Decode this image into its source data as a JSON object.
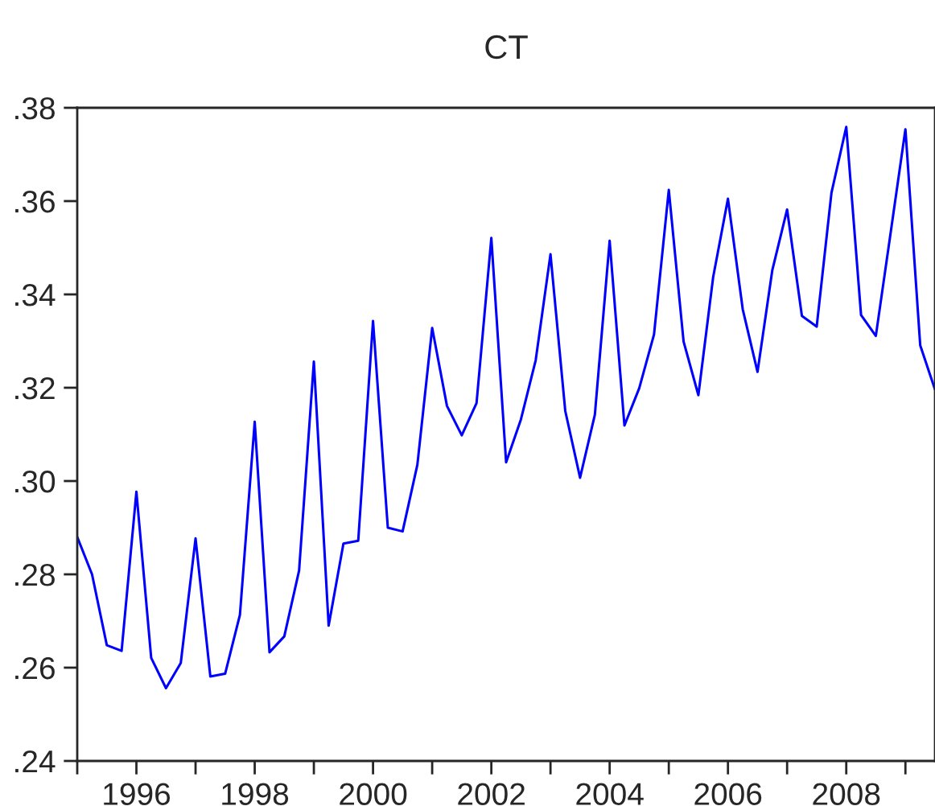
{
  "chart_data": {
    "type": "line",
    "title": "CT",
    "x": [
      1995.0,
      1995.25,
      1995.5,
      1995.75,
      1996.0,
      1996.25,
      1996.5,
      1996.75,
      1997.0,
      1997.25,
      1997.5,
      1997.75,
      1998.0,
      1998.25,
      1998.5,
      1998.75,
      1999.0,
      1999.25,
      1999.5,
      1999.75,
      2000.0,
      2000.25,
      2000.5,
      2000.75,
      2001.0,
      2001.25,
      2001.5,
      2001.75,
      2002.0,
      2002.25,
      2002.5,
      2002.75,
      2003.0,
      2003.25,
      2003.5,
      2003.75,
      2004.0,
      2004.25,
      2004.5,
      2004.75,
      2005.0,
      2005.25,
      2005.5,
      2005.75,
      2006.0,
      2006.25,
      2006.5,
      2006.75,
      2007.0,
      2007.25,
      2007.5,
      2007.75,
      2008.0,
      2008.25,
      2008.5,
      2008.75,
      2009.0,
      2009.25,
      2009.5
    ],
    "series": [
      {
        "color": "#0000ff",
        "values": [
          0.288,
          0.28,
          0.2648,
          0.2636,
          0.2977,
          0.2621,
          0.2556,
          0.261,
          0.2877,
          0.2581,
          0.2587,
          0.2713,
          0.3127,
          0.2633,
          0.2667,
          0.2808,
          0.3256,
          0.269,
          0.2866,
          0.2872,
          0.3343,
          0.29,
          0.2892,
          0.3035,
          0.3328,
          0.3161,
          0.3098,
          0.3167,
          0.3521,
          0.304,
          0.3132,
          0.3259,
          0.3486,
          0.315,
          0.3007,
          0.3142,
          0.3515,
          0.3119,
          0.3199,
          0.3314,
          0.3624,
          0.3299,
          0.3184,
          0.3437,
          0.3605,
          0.3368,
          0.3234,
          0.3452,
          0.3582,
          0.3354,
          0.3331,
          0.3618,
          0.3759,
          0.3356,
          0.3311,
          0.3532,
          0.3754,
          0.3291,
          0.3196
        ]
      }
    ],
    "xlim": [
      1995.0,
      2009.5
    ],
    "xticks": [
      {
        "value": 1995,
        "label": null
      },
      {
        "value": 1996,
        "label": "1996"
      },
      {
        "value": 1997,
        "label": null
      },
      {
        "value": 1998,
        "label": "1998"
      },
      {
        "value": 1999,
        "label": null
      },
      {
        "value": 2000,
        "label": "2000"
      },
      {
        "value": 2001,
        "label": null
      },
      {
        "value": 2002,
        "label": "2002"
      },
      {
        "value": 2003,
        "label": null
      },
      {
        "value": 2004,
        "label": "2004"
      },
      {
        "value": 2005,
        "label": null
      },
      {
        "value": 2006,
        "label": "2006"
      },
      {
        "value": 2007,
        "label": null
      },
      {
        "value": 2008,
        "label": "2008"
      },
      {
        "value": 2009,
        "label": null
      }
    ],
    "ylim": [
      0.24,
      0.38
    ],
    "yticks": [
      {
        "value": 0.24,
        "label": ".24"
      },
      {
        "value": 0.26,
        "label": ".26"
      },
      {
        "value": 0.28,
        "label": ".28"
      },
      {
        "value": 0.3,
        "label": ".30"
      },
      {
        "value": 0.32,
        "label": ".32"
      },
      {
        "value": 0.34,
        "label": ".34"
      },
      {
        "value": 0.36,
        "label": ".36"
      },
      {
        "value": 0.38,
        "label": ".38"
      }
    ],
    "grid": false,
    "legend": false,
    "marker": "none",
    "line_style": "solid"
  }
}
